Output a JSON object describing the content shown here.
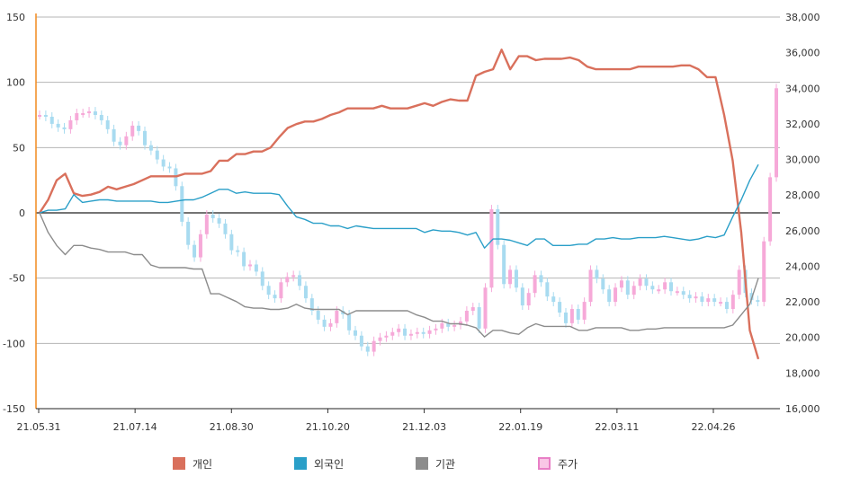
{
  "chart_data": {
    "type": "line",
    "left_axis": {
      "ylim": [
        -150,
        150
      ],
      "ticks": [
        "150",
        "100",
        "50",
        "0",
        "-50",
        "-100",
        "-150"
      ]
    },
    "right_axis": {
      "ylim": [
        16000,
        38000
      ],
      "ticks": [
        "38,000",
        "36,000",
        "34,000",
        "32,000",
        "30,000",
        "28,000",
        "26,000",
        "24,000",
        "22,000",
        "20,000",
        "18,000",
        "16,000"
      ]
    },
    "x_ticks": [
      "21.05.31",
      "21.07.14",
      "21.08.30",
      "21.10.20",
      "21.12.03",
      "22.01.19",
      "22.03.11",
      "22.04.26"
    ],
    "grid": true,
    "legend_position": "bottom",
    "series": [
      {
        "name": "개인",
        "color": "#d9705c",
        "axis": "left",
        "values": [
          0,
          10,
          25,
          30,
          15,
          13,
          14,
          16,
          20,
          18,
          20,
          22,
          25,
          28,
          28,
          28,
          28,
          30,
          30,
          30,
          32,
          40,
          40,
          45,
          45,
          47,
          47,
          50,
          58,
          65,
          68,
          70,
          70,
          72,
          75,
          77,
          80,
          80,
          80,
          80,
          82,
          80,
          80,
          80,
          82,
          84,
          82,
          85,
          87,
          86,
          86,
          105,
          108,
          110,
          125,
          110,
          120,
          120,
          117,
          118,
          118,
          118,
          119,
          117,
          112,
          110,
          110,
          110,
          110,
          110,
          112,
          112,
          112,
          112,
          112,
          113,
          113,
          110,
          104,
          104,
          75,
          40,
          -15,
          -90,
          -112
        ]
      },
      {
        "name": "외국인",
        "color": "#2a9fc8",
        "axis": "left",
        "values": [
          0,
          2,
          2,
          3,
          14,
          8,
          9,
          10,
          10,
          9,
          9,
          9,
          9,
          9,
          8,
          8,
          9,
          10,
          10,
          12,
          15,
          18,
          18,
          15,
          16,
          15,
          15,
          15,
          14,
          5,
          -3,
          -5,
          -8,
          -8,
          -10,
          -10,
          -12,
          -10,
          -11,
          -12,
          -12,
          -12,
          -12,
          -12,
          -12,
          -15,
          -13,
          -14,
          -14,
          -15,
          -17,
          -15,
          -27,
          -20,
          -20,
          -21,
          -23,
          -25,
          -20,
          -20,
          -25,
          -25,
          -25,
          -24,
          -24,
          -20,
          -20,
          -19,
          -20,
          -20,
          -19,
          -19,
          -19,
          -18,
          -19,
          -20,
          -21,
          -20,
          -18,
          -19,
          -17,
          -3,
          10,
          25,
          37
        ]
      },
      {
        "name": "기관",
        "color": "#8c8c8c",
        "axis": "left",
        "values": [
          0,
          -15,
          -25,
          -32,
          -25,
          -25,
          -27,
          -28,
          -30,
          -30,
          -30,
          -32,
          -32,
          -40,
          -42,
          -42,
          -42,
          -42,
          -43,
          -43,
          -62,
          -62,
          -65,
          -68,
          -72,
          -73,
          -73,
          -74,
          -74,
          -73,
          -70,
          -73,
          -74,
          -74,
          -74,
          -74,
          -78,
          -75,
          -75,
          -75,
          -75,
          -75,
          -75,
          -75,
          -78,
          -80,
          -83,
          -83,
          -85,
          -85,
          -86,
          -88,
          -95,
          -90,
          -90,
          -92,
          -93,
          -88,
          -85,
          -87,
          -87,
          -87,
          -87,
          -90,
          -90,
          -88,
          -88,
          -88,
          -88,
          -90,
          -90,
          -89,
          -89,
          -88,
          -88,
          -88,
          -88,
          -88,
          -88,
          -88,
          -88,
          -86,
          -78,
          -70,
          -50
        ]
      }
    ],
    "price_series": {
      "name": "주가",
      "color": "#f6a9d8",
      "axis": "right",
      "close": [
        32500,
        32400,
        32000,
        31800,
        31700,
        32200,
        32600,
        32600,
        32700,
        32500,
        32200,
        31700,
        31000,
        30800,
        31300,
        31900,
        31600,
        30800,
        30500,
        30000,
        29600,
        29500,
        28500,
        26500,
        25200,
        24500,
        25800,
        26900,
        26700,
        26400,
        25800,
        24900,
        24800,
        24000,
        24100,
        23700,
        22900,
        22400,
        22200,
        23100,
        23400,
        23500,
        22900,
        22200,
        21500,
        21000,
        20600,
        20800,
        21500,
        21300,
        20400,
        20100,
        19500,
        19200,
        19800,
        20000,
        20100,
        20300,
        20500,
        20100,
        20200,
        20300,
        20200,
        20400,
        20500,
        20800,
        20600,
        20700,
        20900,
        21500,
        21700,
        20500,
        22800,
        27200,
        25200,
        23000,
        23800,
        22800,
        21800,
        22500,
        23500,
        23100,
        22300,
        22000,
        21400,
        20800,
        21600,
        21000,
        22000,
        23800,
        23300,
        22700,
        22000,
        22800,
        23200,
        22400,
        22900,
        23300,
        22900,
        22700,
        22700,
        23100,
        22600,
        22600,
        22400,
        22200,
        22300,
        22000,
        22200,
        22000,
        22000,
        21600,
        22400,
        23800,
        22500,
        22100,
        22000,
        25400,
        29000,
        34000
      ]
    }
  }
}
